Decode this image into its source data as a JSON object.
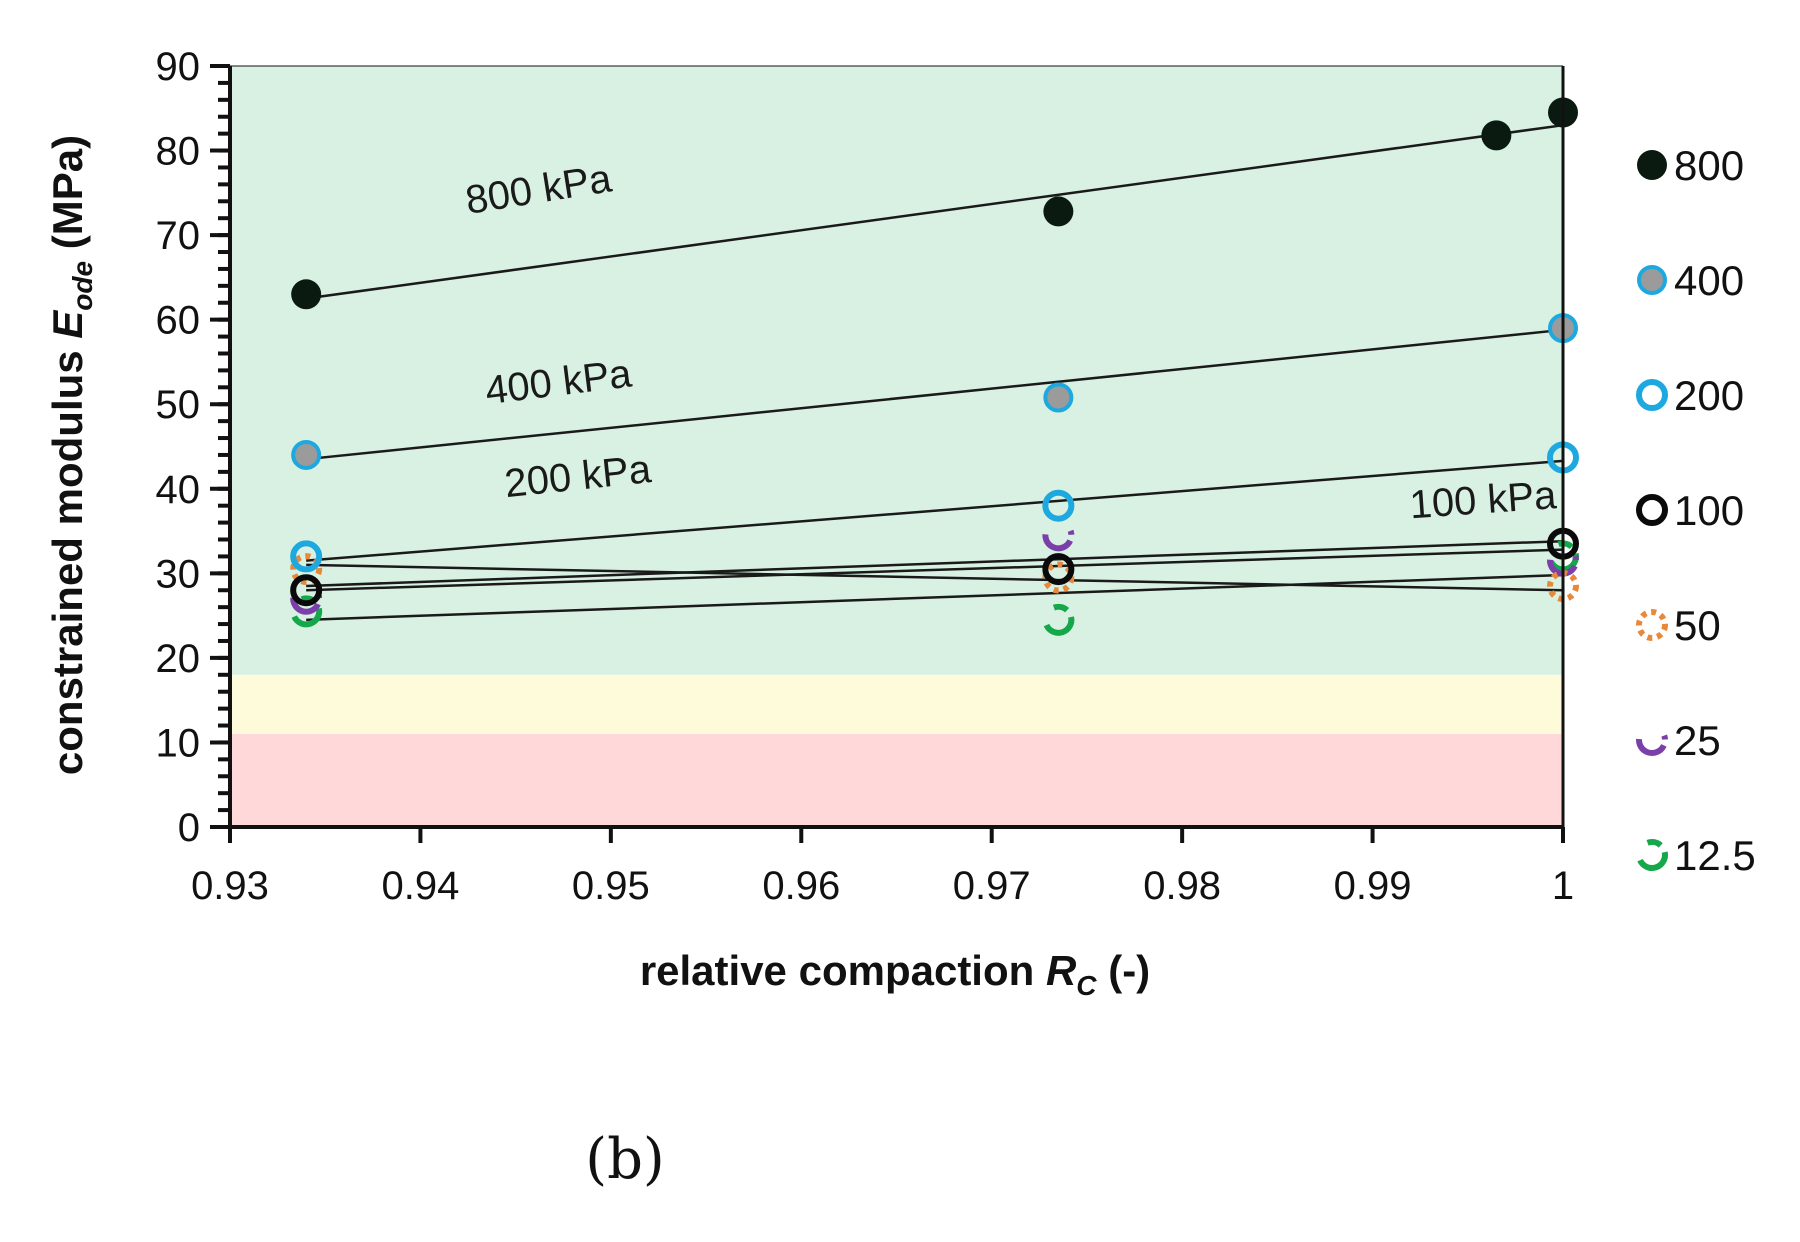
{
  "chart_data": {
    "type": "scatter",
    "xlabel": "relative compaction",
    "xlabel_symbol": "R",
    "xlabel_sub": "C",
    "xlabel_unit": "(-)",
    "ylabel": "constrained modulus",
    "ylabel_symbol": "E",
    "ylabel_sub": "ode",
    "ylabel_unit": "(MPa)",
    "xlim": [
      0.93,
      1.0
    ],
    "ylim": [
      0,
      90
    ],
    "x_ticks": [
      0.93,
      0.94,
      0.95,
      0.96,
      0.97,
      0.98,
      0.99,
      1.0
    ],
    "x_tick_labels": [
      "0.93",
      "0.94",
      "0.95",
      "0.96",
      "0.97",
      "0.98",
      "0.99",
      "1"
    ],
    "y_ticks": [
      0,
      10,
      20,
      30,
      40,
      50,
      60,
      70,
      80,
      90
    ],
    "y_tick_labels": [
      "0",
      "10",
      "20",
      "30",
      "40",
      "50",
      "60",
      "70",
      "80",
      "90"
    ],
    "background_bands": [
      {
        "from": 0,
        "to": 11,
        "color": "#ffd9d9"
      },
      {
        "from": 11,
        "to": 18,
        "color": "#fdfbd9"
      },
      {
        "from": 18,
        "to": 90,
        "color": "#d8f1e3"
      }
    ],
    "series": [
      {
        "name": "800",
        "marker": "filled-black",
        "x": [
          0.934,
          0.9735,
          0.9965,
          1.0
        ],
        "y": [
          63.0,
          72.8,
          81.8,
          84.5
        ],
        "fit": [
          [
            0.934,
            62.5
          ],
          [
            1.0,
            83.0
          ]
        ]
      },
      {
        "name": "400",
        "marker": "grey-blue",
        "x": [
          0.934,
          0.9735,
          1.0
        ],
        "y": [
          44.0,
          50.8,
          59.0
        ],
        "fit": [
          [
            0.934,
            43.5
          ],
          [
            1.0,
            58.8
          ]
        ]
      },
      {
        "name": "200",
        "marker": "blue-ring",
        "x": [
          0.934,
          0.9735,
          1.0
        ],
        "y": [
          32.0,
          38.0,
          43.7
        ],
        "fit": [
          [
            0.934,
            31.5
          ],
          [
            1.0,
            43.3
          ]
        ]
      },
      {
        "name": "100",
        "marker": "black-ring",
        "x": [
          0.934,
          0.9735,
          1.0
        ],
        "y": [
          28.0,
          30.5,
          33.5
        ],
        "fit": [
          [
            0.934,
            28.5
          ],
          [
            1.0,
            33.8
          ]
        ]
      },
      {
        "name": "50",
        "marker": "orange-dotted",
        "x": [
          0.934,
          0.9735,
          1.0
        ],
        "y": [
          30.5,
          29.5,
          28.5
        ],
        "fit": [
          [
            0.934,
            31.0
          ],
          [
            1.0,
            28.0
          ]
        ]
      },
      {
        "name": "25",
        "marker": "purple-dashed",
        "x": [
          0.934,
          0.9735,
          1.0
        ],
        "y": [
          27.0,
          34.5,
          31.5
        ],
        "fit": [
          [
            0.934,
            28.0
          ],
          [
            1.0,
            32.8
          ]
        ]
      },
      {
        "name": "12.5",
        "marker": "green-dashed",
        "x": [
          0.934,
          0.9735,
          1.0
        ],
        "y": [
          25.5,
          24.5,
          32.0
        ],
        "fit": [
          [
            0.934,
            24.5
          ],
          [
            1.0,
            29.8
          ]
        ]
      }
    ],
    "annotations": [
      {
        "text": "800 kPa",
        "x": 0.9425,
        "y": 72.5,
        "angle": -9
      },
      {
        "text": "400 kPa",
        "x": 0.9435,
        "y": 50.0,
        "angle": -7
      },
      {
        "text": "200 kPa",
        "x": 0.9445,
        "y": 39.0,
        "angle": -6
      },
      {
        "text": "100 kPa",
        "x": 0.992,
        "y": 36.5,
        "angle": -4
      }
    ],
    "legend": [
      "800",
      "400",
      "200",
      "100",
      "50",
      "25",
      "12.5"
    ],
    "legend_position": "right",
    "grid": false
  },
  "panel_label": "(b)",
  "colors": {
    "black": "#0a0a0a",
    "dark_marker": "#0a1a10",
    "grey_fill": "#9b9b9b",
    "blue": "#1da8e0",
    "orange": "#e8883a",
    "purple": "#7a3fa8",
    "green": "#14a84a"
  }
}
